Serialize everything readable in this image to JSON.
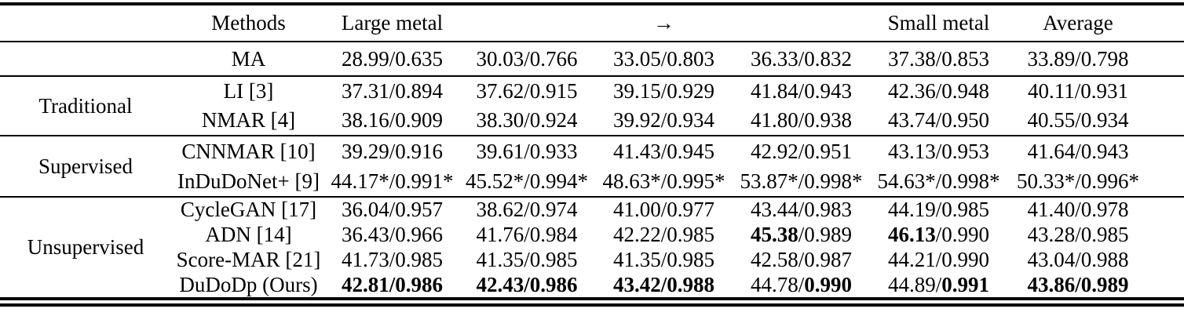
{
  "colors": {
    "text": "#000000",
    "background": "#ffffff",
    "rule": "#000000"
  },
  "table": {
    "header": {
      "group_label": "",
      "methods_label": "Methods",
      "column_labels": [
        "Large metal",
        "",
        "→",
        "",
        "Small metal",
        "Average"
      ]
    },
    "sections": [
      {
        "group": "",
        "rows": [
          {
            "method": "MA",
            "cells": [
              [
                [
                  "28.99/0.635",
                  false
                ]
              ],
              [
                [
                  "30.03/0.766",
                  false
                ]
              ],
              [
                [
                  "33.05/0.803",
                  false
                ]
              ],
              [
                [
                  "36.33/0.832",
                  false
                ]
              ],
              [
                [
                  "37.38/0.853",
                  false
                ]
              ],
              [
                [
                  "33.89/0.798",
                  false
                ]
              ]
            ]
          }
        ]
      },
      {
        "group": "Traditional",
        "rows": [
          {
            "method": "LI [3]",
            "cells": [
              [
                [
                  "37.31/0.894",
                  false
                ]
              ],
              [
                [
                  "37.62/0.915",
                  false
                ]
              ],
              [
                [
                  "39.15/0.929",
                  false
                ]
              ],
              [
                [
                  "41.84/0.943",
                  false
                ]
              ],
              [
                [
                  "42.36/0.948",
                  false
                ]
              ],
              [
                [
                  "40.11/0.931",
                  false
                ]
              ]
            ]
          },
          {
            "method": "NMAR [4]",
            "cells": [
              [
                [
                  "38.16/0.909",
                  false
                ]
              ],
              [
                [
                  "38.30/0.924",
                  false
                ]
              ],
              [
                [
                  "39.92/0.934",
                  false
                ]
              ],
              [
                [
                  "41.80/0.938",
                  false
                ]
              ],
              [
                [
                  "43.74/0.950",
                  false
                ]
              ],
              [
                [
                  "40.55/0.934",
                  false
                ]
              ]
            ]
          }
        ]
      },
      {
        "group": "Supervised",
        "rows": [
          {
            "method": "CNNMAR [10]",
            "cells": [
              [
                [
                  "39.29/0.916",
                  false
                ]
              ],
              [
                [
                  "39.61/0.933",
                  false
                ]
              ],
              [
                [
                  "41.43/0.945",
                  false
                ]
              ],
              [
                [
                  "42.92/0.951",
                  false
                ]
              ],
              [
                [
                  "43.13/0.953",
                  false
                ]
              ],
              [
                [
                  "41.64/0.943",
                  false
                ]
              ]
            ]
          },
          {
            "method": "InDuDoNet+ [9]",
            "cells": [
              [
                [
                  "44.17*/0.991*",
                  false
                ]
              ],
              [
                [
                  "45.52*/0.994*",
                  false
                ]
              ],
              [
                [
                  "48.63*/0.995*",
                  false
                ]
              ],
              [
                [
                  "53.87*/0.998*",
                  false
                ]
              ],
              [
                [
                  "54.63*/0.998*",
                  false
                ]
              ],
              [
                [
                  "50.33*/0.996*",
                  false
                ]
              ]
            ]
          }
        ]
      },
      {
        "group": "Unsupervised",
        "rows": [
          {
            "method": "CycleGAN [17]",
            "cells": [
              [
                [
                  "36.04/0.957",
                  false
                ]
              ],
              [
                [
                  "38.62/0.974",
                  false
                ]
              ],
              [
                [
                  "41.00/0.977",
                  false
                ]
              ],
              [
                [
                  "43.44/0.983",
                  false
                ]
              ],
              [
                [
                  "44.19/0.985",
                  false
                ]
              ],
              [
                [
                  "41.40/0.978",
                  false
                ]
              ]
            ]
          },
          {
            "method": "ADN [14]",
            "cells": [
              [
                [
                  "36.43/0.966",
                  false
                ]
              ],
              [
                [
                  "41.76/0.984",
                  false
                ]
              ],
              [
                [
                  "42.22/0.985",
                  false
                ]
              ],
              [
                [
                  "45.38",
                  true
                ],
                [
                  "/0.989",
                  false
                ]
              ],
              [
                [
                  "46.13",
                  true
                ],
                [
                  "/0.990",
                  false
                ]
              ],
              [
                [
                  "43.28/0.985",
                  false
                ]
              ]
            ]
          },
          {
            "method": "Score-MAR [21]",
            "cells": [
              [
                [
                  "41.73/0.985",
                  false
                ]
              ],
              [
                [
                  "41.35/0.985",
                  false
                ]
              ],
              [
                [
                  "41.35/0.985",
                  false
                ]
              ],
              [
                [
                  "42.58/0.987",
                  false
                ]
              ],
              [
                [
                  "44.21/0.990",
                  false
                ]
              ],
              [
                [
                  "43.04/0.988",
                  false
                ]
              ]
            ]
          },
          {
            "method": "DuDoDp (Ours)",
            "cells": [
              [
                [
                  "42.81/0.986",
                  true
                ]
              ],
              [
                [
                  "42.43/0.986",
                  true
                ]
              ],
              [
                [
                  "43.42/0.988",
                  true
                ]
              ],
              [
                [
                  "44.78/",
                  false
                ],
                [
                  "0.990",
                  true
                ]
              ],
              [
                [
                  "44.89/",
                  false
                ],
                [
                  "0.991",
                  true
                ]
              ],
              [
                [
                  "43.86/0.989",
                  true
                ]
              ]
            ]
          }
        ]
      }
    ]
  }
}
